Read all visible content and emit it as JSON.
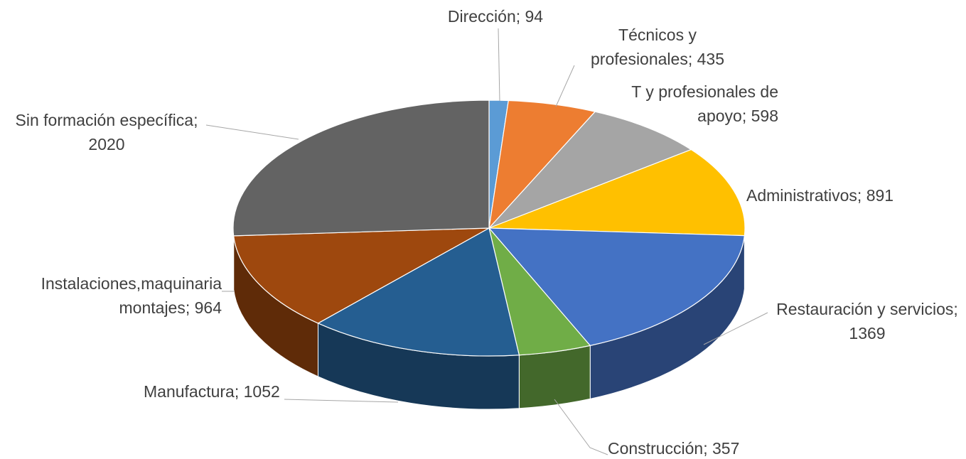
{
  "chart_data": {
    "type": "pie",
    "values": [
      94,
      435,
      598,
      891,
      1369,
      357,
      1052,
      964,
      2020
    ],
    "value_labels": [
      "Dirección; 94",
      "Técnicos y profesionales; 435",
      "T y profesionales de apoyo; 598",
      "Administrativos; 891",
      "Restauración y servicios; 1369",
      "Construcción; 357",
      "Manufactura; 1052",
      "Instalaciones,maquinaria montajes; 964",
      "Sin formación específica; 2020"
    ],
    "colors": [
      "#5b9bd5",
      "#ed7d31",
      "#a5a5a5",
      "#ffc000",
      "#4472c4",
      "#70ad47",
      "#255e91",
      "#9e480e",
      "#636363"
    ]
  }
}
